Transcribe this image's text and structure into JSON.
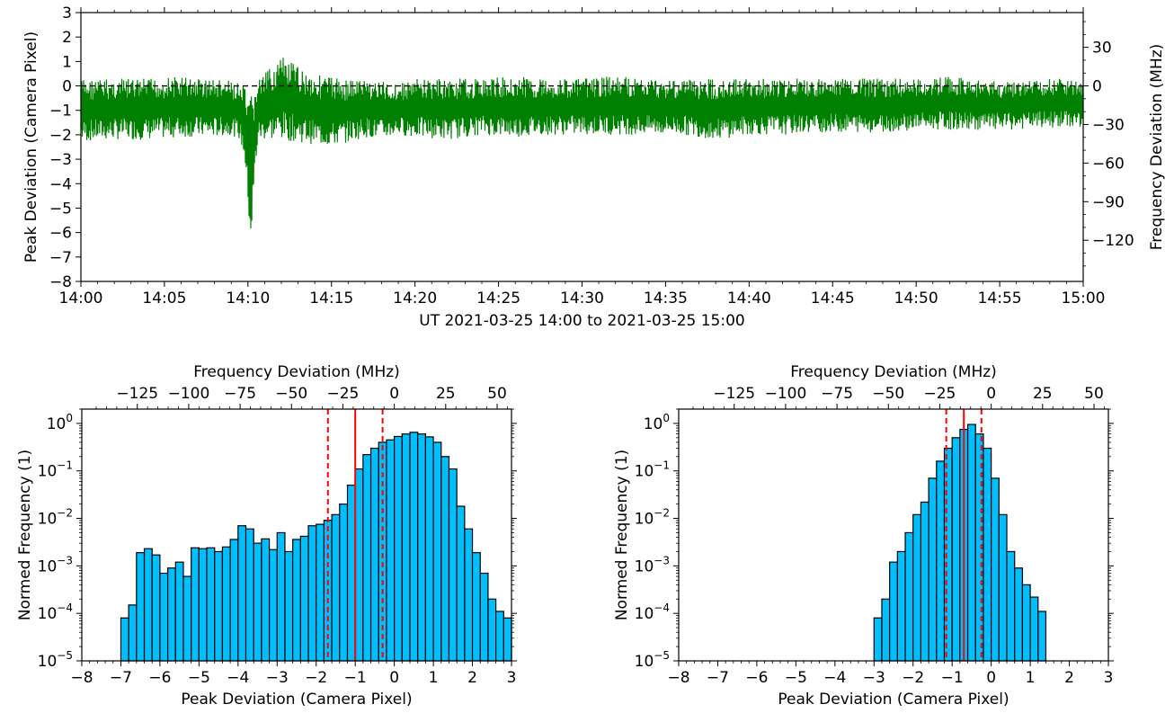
{
  "chart_data": [
    {
      "type": "line",
      "xlabel": "UT 2021-03-25 14:00  to  2021-03-25 15:00",
      "ylabel": "Peak Deviation (Camera Pixel)",
      "ylabel_right": "Frequency Deviation (MHz)",
      "x_ticks": [
        "14:00",
        "14:05",
        "14:10",
        "14:15",
        "14:20",
        "14:25",
        "14:30",
        "14:35",
        "14:40",
        "14:45",
        "14:50",
        "14:55",
        "15:00"
      ],
      "xlim_minutes": [
        0,
        60
      ],
      "ylim": [
        -8,
        3
      ],
      "y_ticks": [
        3,
        2,
        1,
        0,
        -1,
        -2,
        -3,
        -4,
        -5,
        -6,
        -7,
        -8
      ],
      "right_ticks": [
        30,
        0,
        -30,
        -60,
        -90,
        -120
      ],
      "mhz_per_pixel": 19.0,
      "reference_line": 0,
      "series": [
        {
          "color": "#008000",
          "envelope_minutes": [
            0,
            2,
            4,
            6,
            8,
            9,
            9.5,
            9.8,
            10.0,
            10.2,
            10.4,
            10.6,
            11,
            12,
            13,
            14,
            15,
            16,
            17,
            18,
            19,
            20,
            22,
            24,
            26,
            28,
            30,
            32,
            34,
            36,
            38,
            40,
            42,
            44,
            46,
            48,
            50,
            52,
            54,
            56,
            58,
            60
          ],
          "envelope_upper": [
            0.3,
            0.3,
            0.3,
            0.4,
            0.3,
            0.2,
            0.1,
            0,
            -0.8,
            -0.2,
            0,
            0.3,
            0.5,
            1.2,
            0.8,
            0.5,
            0.4,
            0.3,
            0.3,
            0.2,
            0.1,
            0.3,
            0.3,
            0.3,
            0.4,
            0.3,
            0.3,
            0.4,
            0.3,
            0.3,
            0.3,
            0.3,
            0.3,
            0.3,
            0.3,
            0.3,
            0.3,
            0.4,
            0.2,
            0.2,
            0.3,
            0.3
          ],
          "envelope_lower": [
            -2.3,
            -2.2,
            -2.2,
            -2.1,
            -2.1,
            -2.0,
            -2.2,
            -3.0,
            -5.0,
            -6.8,
            -4.0,
            -2.3,
            -2.2,
            -2.2,
            -2.3,
            -2.4,
            -2.5,
            -2.3,
            -2.1,
            -2.2,
            -2.0,
            -2.1,
            -2.2,
            -2.0,
            -2.1,
            -2.0,
            -2.0,
            -2.0,
            -2.0,
            -2.0,
            -2.2,
            -2.0,
            -2.0,
            -1.9,
            -1.9,
            -1.9,
            -1.8,
            -1.8,
            -1.8,
            -1.8,
            -1.7,
            -1.7
          ]
        }
      ]
    },
    {
      "type": "bar",
      "xlabel": "Peak Deviation (Camera Pixel)",
      "xlabel_top": "Frequency Deviation (MHz)",
      "ylabel": "Normed Frequency (1)",
      "xlim": [
        -8,
        3
      ],
      "ylim": [
        1e-05,
        2
      ],
      "y_scale": "log",
      "x_ticks": [
        -8,
        -7,
        -6,
        -5,
        -4,
        -3,
        -2,
        -1,
        0,
        1,
        2,
        3
      ],
      "top_ticks": [
        -125,
        -100,
        -75,
        -50,
        -25,
        0,
        25,
        50
      ],
      "bin_start": -7.0,
      "bin_width": 0.2,
      "values": [
        8e-05,
        0.00015,
        0.0019,
        0.0023,
        0.0017,
        0.0007,
        0.0009,
        0.0012,
        0.0006,
        0.0024,
        0.0023,
        0.0024,
        0.002,
        0.0025,
        0.0036,
        0.007,
        0.006,
        0.003,
        0.0037,
        0.0022,
        0.005,
        0.002,
        0.0036,
        0.0042,
        0.007,
        0.0075,
        0.0091,
        0.012,
        0.02,
        0.05,
        0.11,
        0.22,
        0.3,
        0.4,
        0.45,
        0.53,
        0.6,
        0.65,
        0.6,
        0.52,
        0.4,
        0.2,
        0.11,
        0.018,
        0.006,
        0.0019,
        0.0007,
        0.0002,
        0.00011,
        8e-05
      ],
      "median": -1.0,
      "lower_quantile": -1.7,
      "upper_quantile": -0.3
    },
    {
      "type": "bar",
      "xlabel": "Peak Deviation (Camera Pixel)",
      "xlabel_top": "Frequency Deviation (MHz)",
      "ylabel": "Normed Frequency (1)",
      "xlim": [
        -8,
        3
      ],
      "ylim": [
        1e-05,
        2
      ],
      "y_scale": "log",
      "x_ticks": [
        -8,
        -7,
        -6,
        -5,
        -4,
        -3,
        -2,
        -1,
        0,
        1,
        2,
        3
      ],
      "top_ticks": [
        -125,
        -100,
        -75,
        -50,
        -25,
        0,
        25,
        50
      ],
      "bin_start": -3.0,
      "bin_width": 0.2,
      "values": [
        8e-05,
        0.0002,
        0.0012,
        0.002,
        0.005,
        0.012,
        0.022,
        0.07,
        0.16,
        0.3,
        0.5,
        0.75,
        0.95,
        0.6,
        0.3,
        0.07,
        0.012,
        0.002,
        0.0009,
        0.0004,
        0.00022,
        0.00011
      ],
      "median": -0.7,
      "lower_quantile": -1.15,
      "upper_quantile": -0.25
    }
  ]
}
